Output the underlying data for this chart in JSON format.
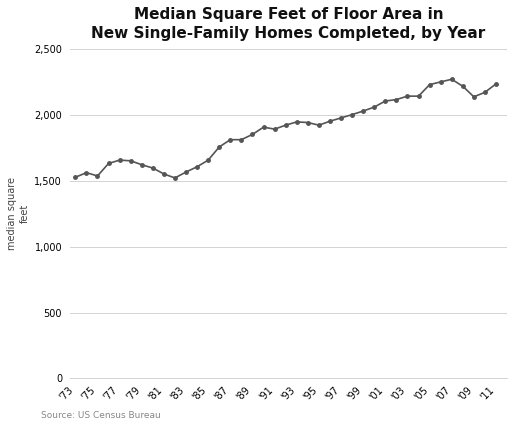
{
  "title": "Median Square Feet of Floor Area in\nNew Single-Family Homes Completed, by Year",
  "ylabel": "median square\nfeet",
  "source": "Source: US Census Bureau",
  "years": [
    1973,
    1974,
    1975,
    1976,
    1977,
    1978,
    1979,
    1980,
    1981,
    1982,
    1983,
    1984,
    1985,
    1986,
    1987,
    1988,
    1989,
    1990,
    1991,
    1992,
    1993,
    1994,
    1995,
    1996,
    1997,
    1998,
    1999,
    2000,
    2001,
    2002,
    2003,
    2004,
    2005,
    2006,
    2007,
    2008,
    2009,
    2010,
    2011
  ],
  "values": [
    1525,
    1560,
    1535,
    1630,
    1655,
    1650,
    1620,
    1595,
    1550,
    1520,
    1565,
    1605,
    1655,
    1755,
    1810,
    1810,
    1850,
    1905,
    1890,
    1920,
    1945,
    1940,
    1920,
    1950,
    1975,
    2000,
    2027,
    2057,
    2103,
    2114,
    2140,
    2140,
    2227,
    2248,
    2268,
    2215,
    2135,
    2169,
    2233
  ],
  "line_color": "#555555",
  "line_width": 1.2,
  "marker": "o",
  "marker_size": 2.5,
  "ylim": [
    0,
    2500
  ],
  "yticks": [
    0,
    500,
    1000,
    1500,
    2000,
    2500
  ],
  "ytick_labels": [
    "0",
    "500",
    "1,000",
    "1,500",
    "2,000",
    "2,500"
  ],
  "xlim_min": 1972.5,
  "xlim_max": 2012.0,
  "xtick_years": [
    1973,
    1975,
    1977,
    1979,
    1981,
    1983,
    1985,
    1987,
    1989,
    1991,
    1993,
    1995,
    1997,
    1999,
    2001,
    2003,
    2005,
    2007,
    2009,
    2011
  ],
  "background_color": "#ffffff",
  "grid_color": "#cccccc",
  "title_fontsize": 11,
  "label_fontsize": 7,
  "tick_fontsize": 7,
  "source_fontsize": 6.5
}
